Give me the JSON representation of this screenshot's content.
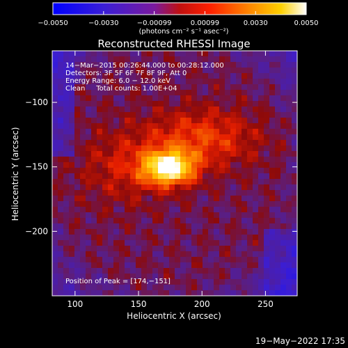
{
  "colorbar": {
    "tick_labels": [
      "−0.0050",
      "−0.0030",
      "−0.00099",
      "0.00099",
      "0.0030",
      "0.0050"
    ],
    "units_label": "(photons cm⁻² s⁻¹ asec⁻²)",
    "range": [
      -0.005,
      0.005
    ],
    "colormap": "blue-purple-red-yellow-white"
  },
  "chart_data": {
    "type": "heatmap",
    "title": "Reconstructed RHESSI Image",
    "xlabel": "Heliocentric X (arcsec)",
    "ylabel": "Heliocentric Y (arcsec)",
    "xlim": [
      82,
      275
    ],
    "ylim": [
      -250,
      -60
    ],
    "x_ticks": [
      100,
      150,
      200,
      250
    ],
    "y_ticks": [
      -100,
      -150,
      -200
    ],
    "x_tick_labels": [
      "100",
      "150",
      "200",
      "250"
    ],
    "y_tick_labels": [
      "−100",
      "−150",
      "−200"
    ],
    "annotations": [
      "14−Mar−2015 00:26:44.000 to 00:28:12.000",
      "Detectors: 3F 5F 6F 7F 8F 9F, Att 0",
      "Energy Range: 6.0 − 12.0 keV",
      "Clean     Total counts: 1.00E+04"
    ],
    "peak_text": "Position of Peak = [174,−151]",
    "peak_position": [
      174,
      -151
    ],
    "value_range": [
      -0.005,
      0.005
    ]
  },
  "footer": {
    "timestamp": "19−May−2022 17:35"
  }
}
